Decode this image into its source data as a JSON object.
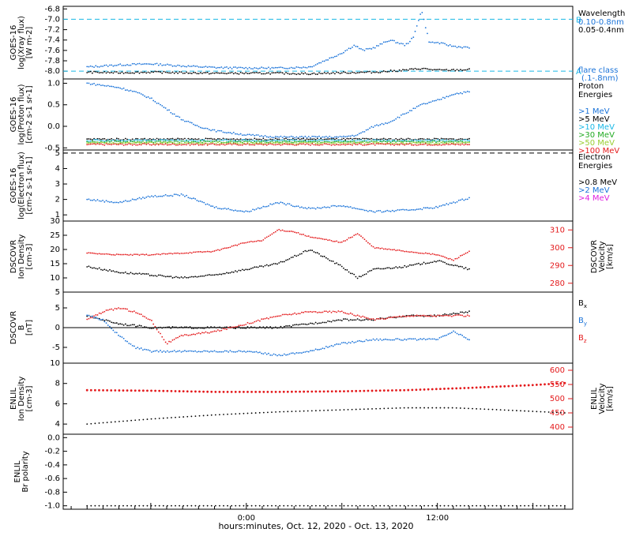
{
  "figure": {
    "time_label": "hours:minutes, Oct. 12, 2020 - Oct. 13, 2020",
    "time_ticks": [
      "0:00",
      "12:00"
    ]
  },
  "colors": {
    "blue": "#1a73d9",
    "cyan": "#19b8e6",
    "black": "#000000",
    "red": "#e41a1c",
    "green": "#22aa22",
    "orange": "#ff8c00",
    "yellow_green": "#9acd32",
    "magenta": "#e020e0"
  },
  "chart_data": [
    {
      "type": "scatter",
      "panel": "xray",
      "ylabel_lines": [
        "GOES-16",
        "log(Xray flux)",
        "[W m-2]"
      ],
      "ylim": [
        -8.15,
        -6.75
      ],
      "yticks": [
        -8.0,
        -7.8,
        -7.6,
        -7.4,
        -7.2,
        -7.0,
        -6.8
      ],
      "reference_lines": [
        {
          "value": -7.0,
          "label": "B"
        },
        {
          "value": -8.0,
          "label": "A"
        }
      ],
      "legend_title": "Wavelength",
      "series": [
        {
          "name": "0.10-0.8nm",
          "color": "blue",
          "x": [
            -10,
            -8,
            -6,
            -4,
            -2,
            0,
            2,
            4,
            5.5,
            6,
            6.8,
            7.3,
            8,
            9,
            10,
            10.5,
            11,
            11.5,
            12,
            13,
            14
          ],
          "y": [
            -7.92,
            -7.88,
            -7.86,
            -7.9,
            -7.93,
            -7.94,
            -7.94,
            -7.92,
            -7.72,
            -7.65,
            -7.5,
            -7.6,
            -7.55,
            -7.4,
            -7.5,
            -7.35,
            -6.82,
            -7.45,
            -7.45,
            -7.52,
            -7.55
          ]
        },
        {
          "name": "0.05-0.4nm",
          "color": "black",
          "x": [
            -10,
            -8,
            -6,
            -4,
            -2,
            0,
            2,
            4,
            6,
            8,
            10,
            11,
            12,
            13,
            14
          ],
          "y": [
            -8.02,
            -8.03,
            -8.02,
            -8.03,
            -8.04,
            -8.04,
            -8.04,
            -8.05,
            -8.03,
            -8.02,
            -7.98,
            -7.95,
            -7.98,
            -7.98,
            -7.97
          ]
        }
      ],
      "annotation": [
        "flare class",
        "(.1-.8nm)"
      ]
    },
    {
      "type": "scatter",
      "panel": "proton",
      "ylabel_lines": [
        "GOES-16",
        "log(Proton flux)",
        "[cm-2 s-1 sr-1]"
      ],
      "ylim": [
        -0.55,
        1.1
      ],
      "yticks": [
        -0.5,
        0.0,
        0.5,
        1.0
      ],
      "legend_title": [
        "Proton",
        "Energies"
      ],
      "series": [
        {
          "name": ">1 MeV",
          "color": "blue",
          "x": [
            -10,
            -9,
            -8,
            -7,
            -6,
            -5,
            -4,
            -3,
            -2,
            0,
            2,
            4,
            6,
            7,
            8,
            9,
            10,
            11,
            12,
            13,
            14
          ],
          "y": [
            1.0,
            0.95,
            0.9,
            0.8,
            0.65,
            0.4,
            0.15,
            0.0,
            -0.1,
            -0.2,
            -0.25,
            -0.25,
            -0.25,
            -0.2,
            0.0,
            0.1,
            0.3,
            0.5,
            0.6,
            0.75,
            0.8
          ]
        },
        {
          "name": ">5 MeV",
          "color": "black",
          "x": [
            -10,
            14
          ],
          "y": [
            -0.3,
            -0.3
          ]
        },
        {
          "name": ">10 MeV",
          "color": "cyan",
          "x": [
            -10,
            14
          ],
          "y": [
            -0.33,
            -0.33
          ]
        },
        {
          "name": ">30 MeV",
          "color": "green",
          "x": [
            -10,
            14
          ],
          "y": [
            -0.36,
            -0.36
          ]
        },
        {
          "name": ">50 MeV",
          "color": "yellow_green",
          "x": [
            -10,
            14
          ],
          "y": [
            -0.39,
            -0.39
          ]
        },
        {
          "name": ">100 MeV",
          "color": "red",
          "x": [
            -10,
            14
          ],
          "y": [
            -0.42,
            -0.42
          ]
        }
      ]
    },
    {
      "type": "scatter",
      "panel": "electron",
      "ylabel_lines": [
        "GOES-16",
        "log(Electron flux)",
        "[cm-2 s-1 sr-1]"
      ],
      "ylim": [
        0.6,
        5.2
      ],
      "yticks": [
        1,
        2,
        3,
        4,
        5
      ],
      "reference_lines": [
        {
          "value": 5.0,
          "label": ""
        }
      ],
      "legend_title": [
        "Electron",
        "Energies"
      ],
      "series": [
        {
          "name": ">0.8 MeV",
          "color": "black",
          "x": [],
          "y": []
        },
        {
          "name": ">2 MeV",
          "color": "blue",
          "x": [
            -10,
            -8,
            -6,
            -4,
            -2,
            0,
            2,
            4,
            6,
            8,
            10,
            12,
            14
          ],
          "y": [
            2.0,
            1.8,
            2.2,
            2.3,
            1.5,
            1.2,
            1.8,
            1.4,
            1.6,
            1.2,
            1.3,
            1.5,
            2.1
          ]
        },
        {
          "name": ">4 MeV",
          "color": "magenta",
          "x": [],
          "y": []
        }
      ]
    },
    {
      "type": "scatter",
      "panel": "dscovr_density",
      "ylabel_lines": [
        "DSCOVR",
        "Ion Density",
        "[cm-3]"
      ],
      "ylim": [
        5,
        30
      ],
      "yticks": [
        5,
        10,
        15,
        20,
        25,
        30
      ],
      "right_axis": {
        "label_lines": [
          "DSCOVR",
          "Velocity",
          "[km/s]"
        ],
        "ylim": [
          275,
          315
        ],
        "ticks": [
          280,
          290,
          300,
          310
        ]
      },
      "series": [
        {
          "name": "density",
          "color": "black",
          "x": [
            -10,
            -8,
            -6,
            -4,
            -2,
            0,
            2,
            4,
            6,
            7,
            8,
            10,
            12,
            14
          ],
          "y": [
            14,
            12,
            11,
            10,
            11,
            13,
            15,
            20,
            14,
            10,
            13,
            14,
            16,
            13
          ]
        },
        {
          "name": "velocity",
          "color": "red",
          "axis": "right",
          "x": [
            -10,
            -8,
            -6,
            -4,
            -2,
            0,
            1,
            2,
            3,
            4,
            6,
            7,
            8,
            10,
            12,
            13,
            14
          ],
          "y": [
            297,
            296,
            296,
            297,
            298,
            303,
            304,
            310,
            309,
            306,
            303,
            308,
            300,
            298,
            296,
            293,
            298
          ]
        }
      ]
    },
    {
      "type": "scatter",
      "panel": "dscovr_b",
      "ylabel_lines": [
        "DSCOVR",
        "B",
        "[nT]"
      ],
      "ylim": [
        -9,
        9
      ],
      "yticks": [
        -5,
        0,
        5
      ],
      "zero_line": true,
      "series": [
        {
          "name": "Bx",
          "color": "black",
          "x": [
            -10,
            -9,
            -8,
            -6,
            -4,
            -2,
            0,
            2,
            4,
            6,
            8,
            10,
            12,
            14
          ],
          "y": [
            3,
            2,
            1,
            0,
            0,
            0,
            0,
            0,
            1,
            2,
            2,
            3,
            3,
            4
          ]
        },
        {
          "name": "By",
          "color": "blue",
          "x": [
            -10,
            -9,
            -8,
            -7,
            -6,
            -4,
            -2,
            0,
            2,
            4,
            6,
            8,
            10,
            12,
            13,
            14
          ],
          "y": [
            3,
            2,
            -2,
            -5,
            -6,
            -6,
            -6,
            -6,
            -7,
            -6,
            -4,
            -3,
            -3,
            -3,
            -1,
            -3
          ]
        },
        {
          "name": "Bz",
          "color": "red",
          "x": [
            -10,
            -9,
            -8,
            -7,
            -6,
            -5,
            -4,
            -2,
            0,
            2,
            4,
            6,
            8,
            10,
            12,
            14
          ],
          "y": [
            2,
            4,
            5,
            4,
            2,
            -4,
            -2,
            -1,
            1,
            3,
            4,
            4,
            2,
            3,
            3,
            3
          ]
        }
      ]
    },
    {
      "type": "line",
      "panel": "enlil_density",
      "ylabel_lines": [
        "ENLIL",
        "Ion Density",
        "[cm-3]"
      ],
      "ylim": [
        3,
        10
      ],
      "yticks": [
        4,
        6,
        8,
        10
      ],
      "right_axis": {
        "label_lines": [
          "ENLIL",
          "Velocity",
          "[km/s]"
        ],
        "ylim": [
          375,
          625
        ],
        "ticks": [
          400,
          450,
          500,
          550,
          600
        ]
      },
      "series": [
        {
          "name": "density",
          "color": "black",
          "x": [
            -10,
            -6,
            -2,
            2,
            6,
            10,
            13,
            16,
            20
          ],
          "y": [
            4.0,
            4.5,
            4.9,
            5.2,
            5.4,
            5.6,
            5.6,
            5.4,
            5.1
          ]
        },
        {
          "name": "velocity",
          "color": "red",
          "axis": "right",
          "x": [
            -10,
            -6,
            -2,
            2,
            6,
            10,
            14,
            18,
            20
          ],
          "y": [
            530,
            528,
            524,
            524,
            526,
            530,
            538,
            548,
            555
          ]
        }
      ]
    },
    {
      "type": "line",
      "panel": "enlil_polarity",
      "ylabel_lines": [
        "ENLIL",
        "Br polarity"
      ],
      "ylim": [
        -1.05,
        0.05
      ],
      "yticks": [
        -1.0,
        -0.8,
        -0.6,
        -0.4,
        -0.2,
        0.0
      ],
      "series": [
        {
          "name": "polarity",
          "color": "black",
          "x": [
            -10,
            20
          ],
          "y": [
            -1.0,
            -1.0
          ]
        }
      ]
    }
  ]
}
